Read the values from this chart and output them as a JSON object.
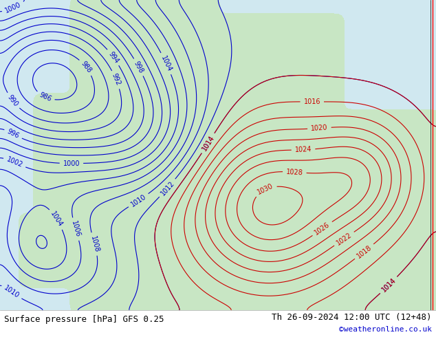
{
  "title_left": "Surface pressure [hPa] GFS 0.25",
  "title_right": "Th 26-09-2024 12:00 UTC (12+48)",
  "copyright": "©weatheronline.co.uk",
  "bg_color": "#d0e8f0",
  "land_color": "#c8e6c0",
  "low_color": "#d0e8f0",
  "contour_color_blue": "#0000cc",
  "contour_color_red": "#cc0000",
  "footer_bg": "#f0f0f0",
  "footer_text_color": "#000000",
  "copyright_color": "#0000cc",
  "font_size_footer": 9,
  "font_size_labels": 7
}
